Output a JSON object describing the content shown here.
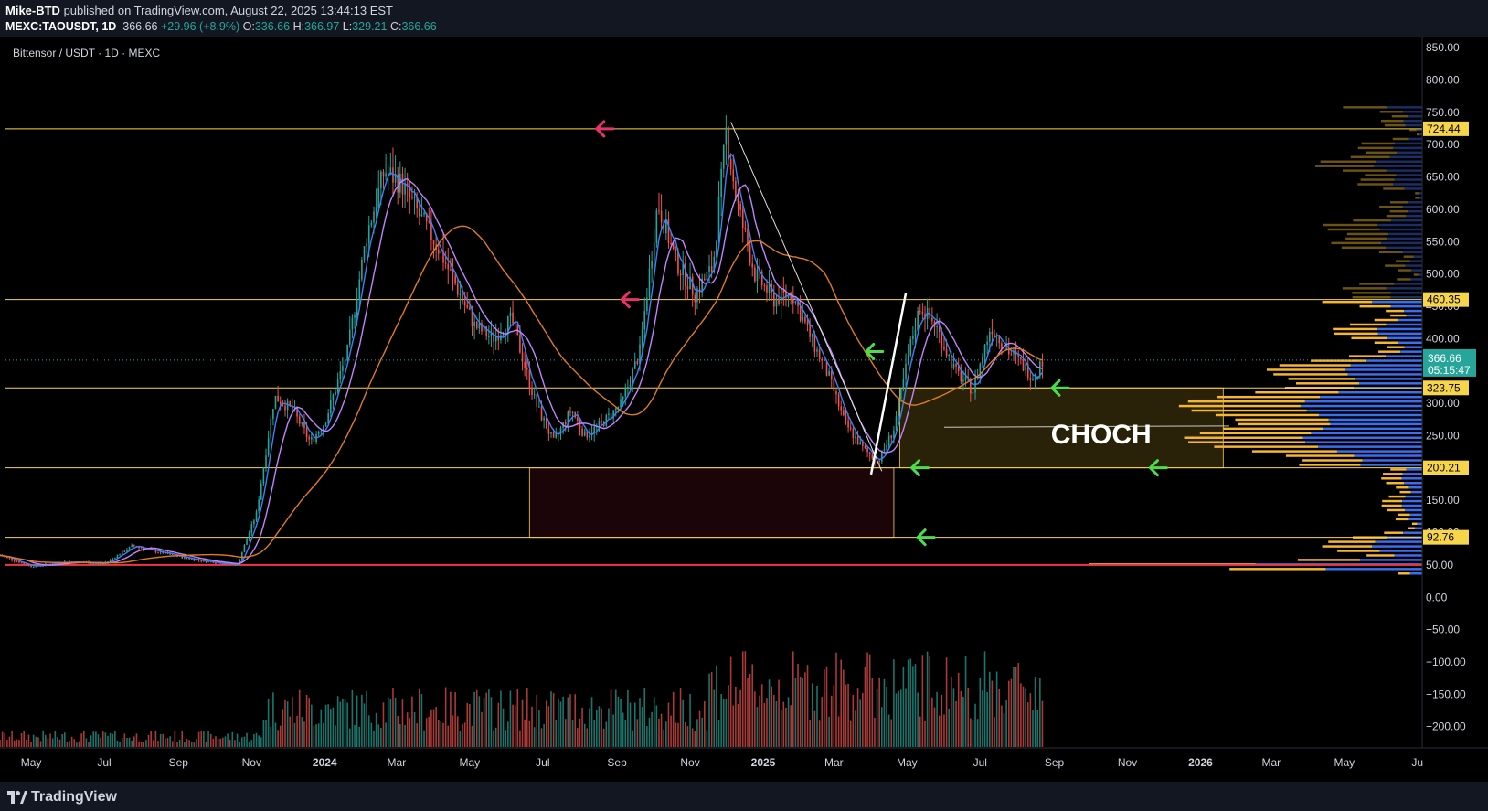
{
  "header": {
    "author": "Mike-BTD",
    "published": "published on TradingView.com, August 22, 2025 13:44:13 EST",
    "symbol": "MEXC:TAOUSDT, 1D",
    "last": "366.66",
    "change": "+29.96 (+8.9%)",
    "o_label": "O:",
    "o": "336.66",
    "h_label": "H:",
    "h": "366.97",
    "l_label": "L:",
    "l": "329.21",
    "c_label": "C:",
    "c": "366.66"
  },
  "footer": {
    "brand": "TradingView"
  },
  "chart_data": {
    "type": "line",
    "title": "Bittensor / USDT · 1D · MEXC",
    "ylim": [
      -240,
      860
    ],
    "y_ticks": [
      850,
      800,
      750,
      700,
      650,
      600,
      550,
      500,
      450,
      400,
      350,
      300,
      250,
      200,
      150,
      100,
      50,
      0,
      -50,
      -100,
      -150,
      -200
    ],
    "y_tick_labels": [
      "850.00",
      "800.00",
      "750.00",
      "700.00",
      "650.00",
      "600.00",
      "550.00",
      "500.00",
      "450.00",
      "400.00",
      "350.00",
      "300.00",
      "250.00",
      "200.00",
      "150.00",
      "100.00",
      "50.00",
      "0.00",
      "−50.00",
      "−100.00",
      "−150.00",
      "−200.00"
    ],
    "x_ticks": [
      "May",
      "Jul",
      "Sep",
      "Nov",
      "2024",
      "Mar",
      "May",
      "Jul",
      "Sep",
      "Nov",
      "2025",
      "Mar",
      "May",
      "Jul",
      "Sep",
      "Nov",
      "2026",
      "Mar",
      "May",
      "Ju"
    ],
    "x_tick_dates": [
      "2023-05-01",
      "2023-07-01",
      "2023-09-01",
      "2023-11-01",
      "2024-01-01",
      "2024-03-01",
      "2024-05-01",
      "2024-07-01",
      "2024-09-01",
      "2024-11-01",
      "2025-01-01",
      "2025-03-01",
      "2025-05-01",
      "2025-07-01",
      "2025-09-01",
      "2025-11-01",
      "2026-01-01",
      "2026-03-01",
      "2026-05-01",
      "2026-07-01"
    ],
    "x_range": [
      "2023-04-05",
      "2026-07-05"
    ],
    "price_series": {
      "name": "",
      "x": [
        "2023-04-05",
        "2023-05-01",
        "2023-06-01",
        "2023-07-01",
        "2023-07-25",
        "2023-08-15",
        "2023-09-15",
        "2023-10-20",
        "2023-11-05",
        "2023-11-20",
        "2023-12-05",
        "2023-12-20",
        "2024-01-01",
        "2024-01-20",
        "2024-02-05",
        "2024-02-20",
        "2024-03-05",
        "2024-03-20",
        "2024-04-05",
        "2024-04-20",
        "2024-05-05",
        "2024-05-20",
        "2024-06-05",
        "2024-06-25",
        "2024-07-10",
        "2024-07-25",
        "2024-08-05",
        "2024-08-20",
        "2024-09-05",
        "2024-09-20",
        "2024-10-05",
        "2024-10-20",
        "2024-11-05",
        "2024-11-20",
        "2024-12-01",
        "2024-12-10",
        "2024-12-25",
        "2025-01-10",
        "2025-01-25",
        "2025-02-10",
        "2025-02-25",
        "2025-03-10",
        "2025-03-25",
        "2025-04-07",
        "2025-04-20",
        "2025-05-05",
        "2025-05-12",
        "2025-05-25",
        "2025-06-10",
        "2025-06-25",
        "2025-07-10",
        "2025-07-25",
        "2025-08-05",
        "2025-08-15",
        "2025-08-22"
      ],
      "y": [
        65,
        48,
        55,
        52,
        80,
        70,
        58,
        50,
        130,
        310,
        290,
        240,
        270,
        380,
        560,
        660,
        640,
        590,
        540,
        480,
        420,
        400,
        430,
        300,
        240,
        290,
        250,
        270,
        300,
        380,
        610,
        520,
        470,
        510,
        720,
        610,
        500,
        460,
        470,
        400,
        340,
        270,
        230,
        210,
        260,
        400,
        450,
        420,
        350,
        320,
        420,
        380,
        360,
        340,
        366.66
      ]
    },
    "levels": [
      {
        "value": 724.44,
        "label": "724.44",
        "color": "#f7d54a"
      },
      {
        "value": 460.35,
        "label": "460.35",
        "color": "#f7d54a"
      },
      {
        "value": 323.75,
        "label": "323.75",
        "color": "#f7d54a"
      },
      {
        "value": 200.21,
        "label": "200.21",
        "color": "#f7d54a"
      },
      {
        "value": 92.76,
        "label": "92.76",
        "color": "#f7d54a"
      },
      {
        "value": 50,
        "label": "",
        "color": "#f23645"
      }
    ],
    "current_price": {
      "value": 366.66,
      "label": "366.66",
      "countdown": "05:15:47",
      "color": "#26a69a"
    },
    "zones": [
      {
        "x0": "2025-04-25",
        "x1": "2026-01-20",
        "y0": 200.21,
        "y1": 323.75,
        "fill": "#2a2208",
        "stroke": "#c8a638"
      },
      {
        "x0": "2024-06-20",
        "x1": "2025-04-20",
        "y0": 92.76,
        "y1": 200.21,
        "fill": "#1c0509",
        "stroke": "#c8a638"
      }
    ],
    "annotations": [
      {
        "text": "CHOCH",
        "x": "2025-10-10",
        "y": 238
      }
    ],
    "arrows": [
      {
        "x": "2024-08-15",
        "y": 724.44,
        "color": "#e8336a"
      },
      {
        "x": "2024-09-05",
        "y": 460.35,
        "color": "#e8336a"
      },
      {
        "x": "2025-03-28",
        "y": 380,
        "color": "#4ade4a"
      },
      {
        "x": "2025-08-30",
        "y": 323.75,
        "color": "#4ade4a"
      },
      {
        "x": "2025-05-05",
        "y": 200.21,
        "color": "#4ade4a"
      },
      {
        "x": "2025-11-20",
        "y": 200.21,
        "color": "#4ade4a"
      },
      {
        "x": "2025-05-10",
        "y": 92.76,
        "color": "#4ade4a"
      }
    ],
    "colors": {
      "up": "#26a69a",
      "down": "#ef5350",
      "ma_fast": "#3b82f6",
      "ma_mid": "#c084fc",
      "ma_slow": "#e07b22",
      "vp_up": "#f5b731",
      "vp_down": "#3a6ff0"
    }
  }
}
